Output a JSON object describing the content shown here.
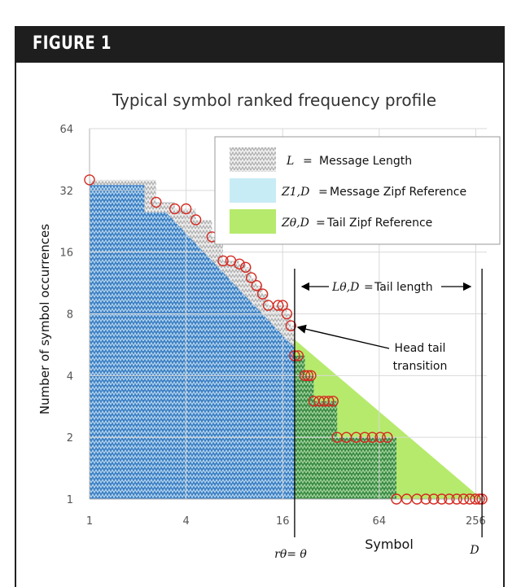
{
  "figure_label": "FIGURE 1",
  "chart_data": {
    "type": "scatter",
    "title": "Typical symbol ranked frequency profile",
    "xlabel": "Symbol",
    "ylabel": "Number of symbol occurrences",
    "x_scale": "log2",
    "y_scale": "log2",
    "xlim": [
      1,
      300
    ],
    "ylim": [
      1,
      64
    ],
    "x_ticks": [
      "1",
      "4",
      "16",
      "64",
      "256"
    ],
    "y_ticks": [
      "1",
      "2",
      "4",
      "8",
      "16",
      "32",
      "64"
    ],
    "grid": true,
    "legend_position": "top-right",
    "legend": [
      {
        "symbol": "L",
        "text": "Message Length",
        "fill": "pattern-gray"
      },
      {
        "symbol": "Z1,D",
        "text": "Message Zipf Reference",
        "fill": "#c8ecf6"
      },
      {
        "symbol": "Zθ,D",
        "text": "Tail Zipf Reference",
        "fill": "#b6ea6c"
      }
    ],
    "equals_sign": "=",
    "theta_rank": 19,
    "D_rank": 280,
    "annotations": {
      "tail_length_label": "Tail length",
      "tail_length_symbol": "Lθ,D",
      "head_tail_line1": "Head tail",
      "head_tail_line2": "transition",
      "r_theta_label": "rθ= θ",
      "D_label": "D"
    },
    "zipf_reference_head": {
      "x": [
        1,
        280
      ],
      "y": [
        35,
        1
      ]
    },
    "zipf_reference_tail": {
      "x": [
        19,
        280
      ],
      "y": [
        6,
        1
      ]
    },
    "series": [
      {
        "name": "",
        "color": "#d42a20",
        "x": [
          1,
          2.6,
          3.4,
          4,
          4.6,
          5.8,
          6.8,
          7.6,
          8.6,
          9.4,
          10.2,
          11,
          12,
          13,
          15,
          16,
          17,
          18,
          19,
          20,
          22,
          23,
          24,
          25,
          27,
          29,
          31,
          33,
          35,
          40,
          46,
          52,
          58,
          65,
          72,
          82,
          95,
          110,
          125,
          140,
          157,
          175,
          195,
          215,
          235,
          255,
          270,
          280
        ],
        "y": [
          36,
          28,
          26,
          26,
          23,
          19,
          14.5,
          14.5,
          14,
          13.5,
          12,
          11,
          10,
          8.8,
          8.8,
          8.8,
          8,
          7,
          5,
          5,
          4,
          4,
          4,
          3,
          3,
          3,
          3,
          3,
          2,
          2,
          2,
          2,
          2,
          2,
          2,
          1,
          1,
          1,
          1,
          1,
          1,
          1,
          1,
          1,
          1,
          1,
          1,
          1
        ]
      }
    ]
  }
}
